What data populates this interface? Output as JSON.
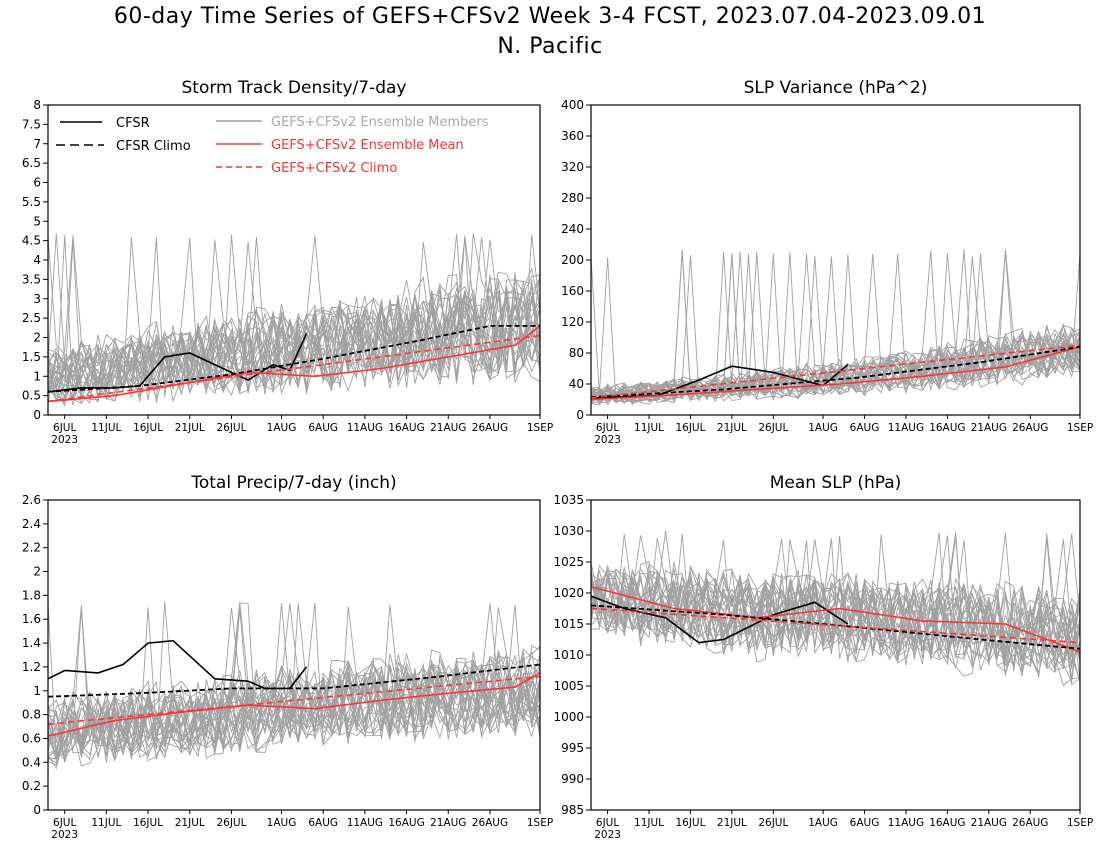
{
  "title_line1": "60-day Time Series of GEFS+CFSv2 Week 3-4 FCST, 2023.07.04-2023.09.01",
  "title_line2": "N. Pacific",
  "legend": {
    "cfsr": "CFSR",
    "cfsr_climo": "CFSR Climo",
    "members": "GEFS+CFSv2 Ensemble Members",
    "mean": "GEFS+CFSv2 Ensemble Mean",
    "gefs_climo": "GEFS+CFSv2 Climo"
  },
  "colors": {
    "cfsr": "#000000",
    "members": "#a0a0a0",
    "mean": "#ff3333",
    "climo_ens": "#ff3333"
  },
  "x_ticks": [
    "6JUL",
    "11JUL",
    "16JUL",
    "21JUL",
    "26JUL",
    "1AUG",
    "6AUG",
    "11AUG",
    "16AUG",
    "21AUG",
    "26AUG",
    "1SEP"
  ],
  "x_year_label": "2023",
  "chart_data": [
    {
      "type": "line",
      "title": "Storm Track Density/7-day",
      "ylim": [
        0,
        8
      ],
      "yticks": [
        "0",
        "0.5",
        "1",
        "1.5",
        "2",
        "2.5",
        "3",
        "3.5",
        "4",
        "4.5",
        "5",
        "5.5",
        "6",
        "6.5",
        "7",
        "7.5",
        "8"
      ],
      "xlim": [
        "2023-07-04",
        "2023-09-01"
      ],
      "member_band": {
        "lower": [
          0.1,
          0.3,
          0.5,
          0.7
        ],
        "upper": [
          2.0,
          2.8,
          3.5,
          4.2
        ],
        "peak": 4.7
      },
      "series": [
        {
          "name": "CFSR",
          "x": [
            "2023-07-04",
            "2023-07-08",
            "2023-07-12",
            "2023-07-15",
            "2023-07-18",
            "2023-07-21",
            "2023-07-25",
            "2023-07-28",
            "2023-07-31",
            "2023-08-02",
            "2023-08-04"
          ],
          "values": [
            0.6,
            0.7,
            0.7,
            0.75,
            1.5,
            1.6,
            1.2,
            0.9,
            1.3,
            1.15,
            2.1
          ]
        },
        {
          "name": "CFSR Climo",
          "x": [
            "2023-07-04",
            "2023-07-15",
            "2023-07-26",
            "2023-08-06",
            "2023-08-17",
            "2023-08-26",
            "2023-09-01"
          ],
          "values": [
            0.6,
            0.75,
            1.05,
            1.45,
            1.9,
            2.3,
            2.3
          ]
        },
        {
          "name": "GEFS+CFSv2 Ensemble Mean",
          "x": [
            "2023-07-04",
            "2023-07-12",
            "2023-07-20",
            "2023-07-28",
            "2023-08-05",
            "2023-08-13",
            "2023-08-21",
            "2023-08-29",
            "2023-09-01"
          ],
          "values": [
            0.35,
            0.5,
            0.8,
            1.1,
            1.0,
            1.2,
            1.5,
            1.8,
            2.3
          ]
        },
        {
          "name": "GEFS+CFSv2 Climo",
          "x": [
            "2023-07-04",
            "2023-09-01"
          ],
          "values": [
            0.35,
            2.05
          ]
        }
      ]
    },
    {
      "type": "line",
      "title": "SLP Variance (hPa^2)",
      "ylim": [
        0,
        400
      ],
      "yticks": [
        "0",
        "40",
        "80",
        "120",
        "160",
        "200",
        "240",
        "280",
        "320",
        "360",
        "400"
      ],
      "xlim": [
        "2023-07-04",
        "2023-09-01"
      ],
      "member_band": {
        "lower": [
          10,
          15,
          25,
          40
        ],
        "upper": [
          40,
          60,
          90,
          130
        ],
        "peak": 215
      },
      "series": [
        {
          "name": "CFSR",
          "x": [
            "2023-07-04",
            "2023-07-12",
            "2023-07-17",
            "2023-07-21",
            "2023-07-26",
            "2023-08-01",
            "2023-08-04"
          ],
          "values": [
            22,
            25,
            45,
            63,
            55,
            38,
            65
          ]
        },
        {
          "name": "CFSR Climo",
          "x": [
            "2023-07-04",
            "2023-07-20",
            "2023-08-05",
            "2023-08-20",
            "2023-09-01"
          ],
          "values": [
            23,
            33,
            48,
            68,
            88
          ]
        },
        {
          "name": "GEFS+CFSv2 Ensemble Mean",
          "x": [
            "2023-07-04",
            "2023-07-14",
            "2023-07-24",
            "2023-08-03",
            "2023-08-13",
            "2023-08-23",
            "2023-09-01"
          ],
          "values": [
            20,
            26,
            33,
            40,
            50,
            62,
            88
          ]
        },
        {
          "name": "GEFS+CFSv2 Climo",
          "x": [
            "2023-07-04",
            "2023-09-01"
          ],
          "values": [
            22,
            90
          ]
        }
      ]
    },
    {
      "type": "line",
      "title": "Total Precip/7-day (inch)",
      "ylim": [
        0,
        2.6
      ],
      "yticks": [
        "0",
        "0.2",
        "0.4",
        "0.6",
        "0.8",
        "1",
        "1.2",
        "1.4",
        "1.6",
        "1.8",
        "2",
        "2.2",
        "2.4",
        "2.6"
      ],
      "xlim": [
        "2023-07-04",
        "2023-09-01"
      ],
      "member_band": {
        "lower": [
          0.3,
          0.4,
          0.5,
          0.55
        ],
        "upper": [
          1.0,
          1.2,
          1.35,
          1.45
        ],
        "peak": 1.75
      },
      "series": [
        {
          "name": "CFSR",
          "x": [
            "2023-07-04",
            "2023-07-06",
            "2023-07-10",
            "2023-07-13",
            "2023-07-16",
            "2023-07-19",
            "2023-07-24",
            "2023-07-28",
            "2023-07-30",
            "2023-08-02",
            "2023-08-04"
          ],
          "values": [
            1.1,
            1.17,
            1.15,
            1.22,
            1.4,
            1.42,
            1.1,
            1.08,
            1.02,
            1.02,
            1.2
          ]
        },
        {
          "name": "CFSR Climo",
          "x": [
            "2023-07-04",
            "2023-07-15",
            "2023-07-26",
            "2023-08-06",
            "2023-08-20",
            "2023-09-01"
          ],
          "values": [
            0.95,
            0.98,
            1.02,
            1.02,
            1.12,
            1.22
          ]
        },
        {
          "name": "GEFS+CFSv2 Ensemble Mean",
          "x": [
            "2023-07-04",
            "2023-07-12",
            "2023-07-20",
            "2023-07-28",
            "2023-08-05",
            "2023-08-13",
            "2023-08-21",
            "2023-08-29",
            "2023-09-01"
          ],
          "values": [
            0.62,
            0.75,
            0.82,
            0.88,
            0.85,
            0.92,
            0.98,
            1.03,
            1.15
          ]
        },
        {
          "name": "GEFS+CFSv2 Climo",
          "x": [
            "2023-07-04",
            "2023-09-01"
          ],
          "values": [
            0.72,
            1.12
          ]
        }
      ]
    },
    {
      "type": "line",
      "title": "Mean SLP (hPa)",
      "ylim": [
        985,
        1035
      ],
      "yticks": [
        "985",
        "990",
        "995",
        "1000",
        "1005",
        "1010",
        "1015",
        "1020",
        "1025",
        "1030",
        "1035"
      ],
      "xlim": [
        "2023-07-04",
        "2023-09-01"
      ],
      "member_band": {
        "lower": [
          1012,
          1008,
          1007,
          1003
        ],
        "upper": [
          1027,
          1025,
          1024,
          1022
        ],
        "peak": 1030
      },
      "series": [
        {
          "name": "CFSR",
          "x": [
            "2023-07-04",
            "2023-07-08",
            "2023-07-13",
            "2023-07-17",
            "2023-07-20",
            "2023-07-26",
            "2023-07-31",
            "2023-08-04"
          ],
          "values": [
            1019.5,
            1017.5,
            1016.0,
            1012.0,
            1012.5,
            1016.5,
            1018.5,
            1015.0
          ]
        },
        {
          "name": "CFSR Climo",
          "x": [
            "2023-07-04",
            "2023-07-20",
            "2023-08-05",
            "2023-08-20",
            "2023-09-01"
          ],
          "values": [
            1018.0,
            1016.5,
            1014.5,
            1012.5,
            1011.0
          ]
        },
        {
          "name": "GEFS+CFSv2 Ensemble Mean",
          "x": [
            "2023-07-04",
            "2023-07-14",
            "2023-07-24",
            "2023-08-03",
            "2023-08-13",
            "2023-08-23",
            "2023-09-01"
          ],
          "values": [
            1021.0,
            1017.5,
            1016.0,
            1017.5,
            1015.5,
            1015.0,
            1010.5
          ]
        },
        {
          "name": "GEFS+CFSv2 Climo",
          "x": [
            "2023-07-04",
            "2023-09-01"
          ],
          "values": [
            1017.5,
            1012.0
          ]
        }
      ]
    }
  ]
}
